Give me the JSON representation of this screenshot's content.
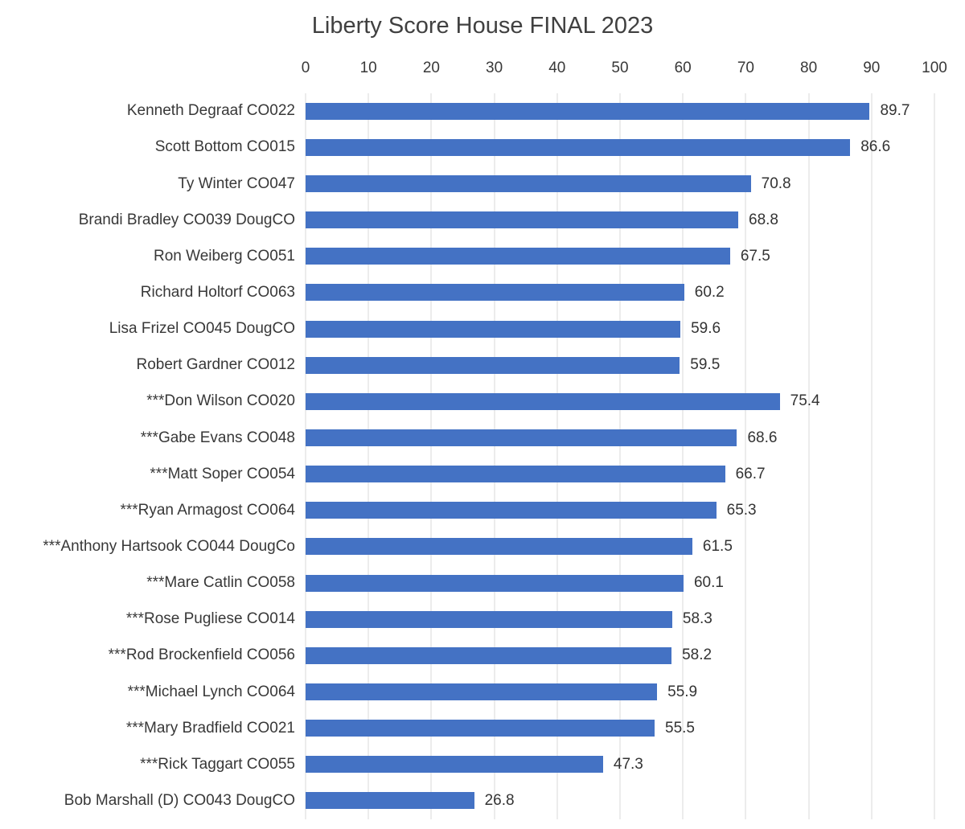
{
  "chart_data": {
    "type": "bar",
    "orientation": "horizontal",
    "title": "Liberty Score House FINAL 2023",
    "categories": [
      "Kenneth Degraaf CO022",
      "Scott Bottom CO015",
      "Ty Winter CO047",
      "Brandi Bradley CO039 DougCO",
      "Ron Weiberg CO051",
      "Richard Holtorf CO063",
      "Lisa Frizel CO045 DougCO",
      "Robert Gardner CO012",
      "***Don Wilson CO020",
      "***Gabe Evans CO048",
      "***Matt Soper CO054",
      "***Ryan Armagost CO064",
      "***Anthony Hartsook CO044 DougCo",
      "***Mare Catlin CO058",
      "***Rose Pugliese CO014",
      "***Rod Brockenfield CO056",
      "***Michael Lynch CO064",
      "***Mary Bradfield CO021",
      "***Rick Taggart CO055",
      "Bob Marshall (D) CO043 DougCO"
    ],
    "values": [
      89.7,
      86.6,
      70.8,
      68.8,
      67.5,
      60.2,
      59.6,
      59.5,
      75.4,
      68.6,
      66.7,
      65.3,
      61.5,
      60.1,
      58.3,
      58.2,
      55.9,
      55.5,
      47.3,
      26.8
    ],
    "xlabel": "",
    "ylabel": "",
    "xlim": [
      0,
      100
    ],
    "xticks": [
      0,
      10,
      20,
      30,
      40,
      50,
      60,
      70,
      80,
      90,
      100
    ],
    "grid": "vertical",
    "legend": "none",
    "value_labels": true,
    "bar_color": "#4472C4",
    "gridline_color": "#D9D9D9"
  }
}
